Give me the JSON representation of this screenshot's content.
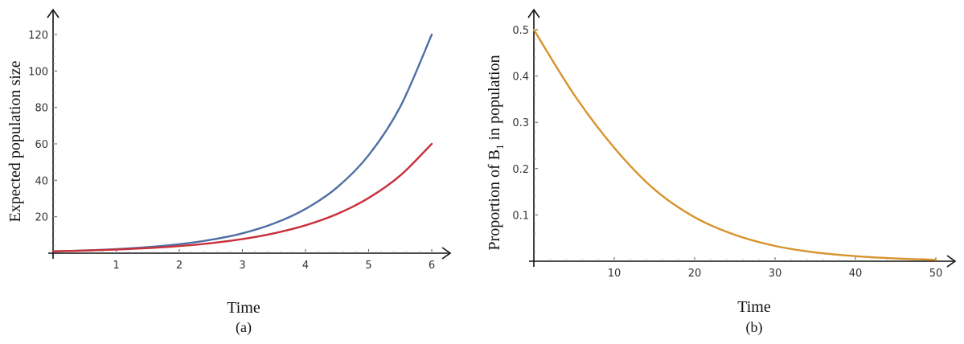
{
  "chart_data": [
    {
      "type": "line",
      "panel_label": "(a)",
      "xlabel": "Time",
      "ylabel": "Expected population size",
      "xlim": [
        0,
        6
      ],
      "ylim": [
        0,
        120
      ],
      "xticks": [
        1,
        2,
        3,
        4,
        5,
        6
      ],
      "yticks": [
        20,
        40,
        60,
        80,
        100,
        120
      ],
      "grid": false,
      "series": [
        {
          "color": "#4f6ea3",
          "x": [
            0,
            0.5,
            1,
            1.5,
            2,
            2.5,
            3,
            3.5,
            4,
            4.5,
            5,
            5.5,
            6
          ],
          "values": [
            1.0,
            1.49,
            2.22,
            3.31,
            4.93,
            7.34,
            10.9,
            16.3,
            24.3,
            36.1,
            53.8,
            80.3,
            120
          ]
        },
        {
          "color": "#c8303a",
          "x": [
            0,
            0.5,
            1,
            1.5,
            2,
            2.5,
            3,
            3.5,
            4,
            4.5,
            5,
            5.5,
            6
          ],
          "values": [
            1.0,
            1.41,
            1.98,
            2.79,
            3.91,
            5.51,
            7.74,
            10.9,
            15.3,
            21.5,
            30.3,
            42.6,
            60
          ]
        }
      ]
    },
    {
      "type": "line",
      "panel_label": "(b)",
      "xlabel": "Time",
      "ylabel_prefix": "Proportion of B",
      "ylabel_sub": "1",
      "ylabel_suffix": " in population",
      "xlim": [
        0,
        50
      ],
      "ylim": [
        0,
        0.5
      ],
      "xticks": [
        10,
        20,
        30,
        40,
        50
      ],
      "yticks": [
        0.1,
        0.2,
        0.3,
        0.4,
        0.5
      ],
      "grid": false,
      "series": [
        {
          "color": "#d9922a",
          "x": [
            0,
            5,
            10,
            15,
            20,
            25,
            30,
            35,
            40,
            45,
            50
          ],
          "values": [
            0.5,
            0.36,
            0.245,
            0.155,
            0.095,
            0.057,
            0.033,
            0.019,
            0.011,
            0.006,
            0.003
          ]
        }
      ]
    }
  ]
}
